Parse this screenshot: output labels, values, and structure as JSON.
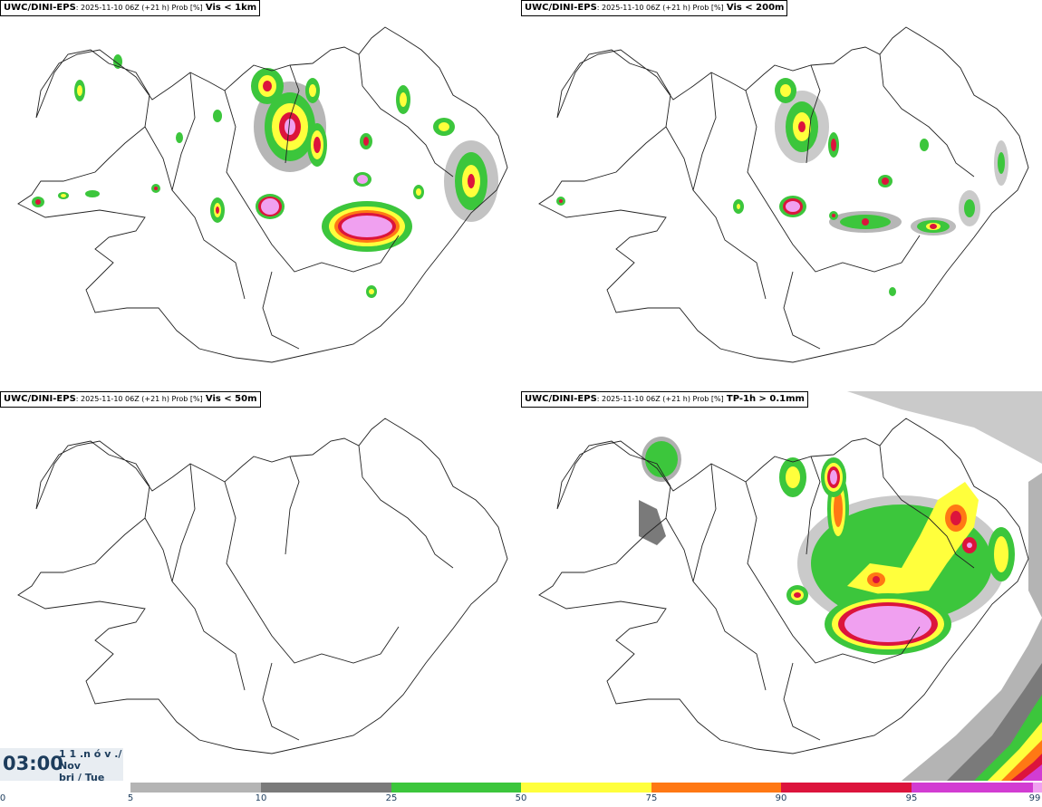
{
  "panels": [
    {
      "source": "UWC/DINI-EPS",
      "meta": ": 2025-11-10 06Z (+21 h) Prob [%]",
      "variable": "Vis < 1km"
    },
    {
      "source": "UWC/DINI-EPS",
      "meta": ": 2025-11-10 06Z (+21 h) Prob [%]",
      "variable": "Vis < 200m"
    },
    {
      "source": "UWC/DINI-EPS",
      "meta": ": 2025-11-10 06Z (+21 h) Prob [%]",
      "variable": "Vis < 50m"
    },
    {
      "source": "UWC/DINI-EPS",
      "meta": ": 2025-11-10 06Z (+21 h) Prob [%]",
      "variable": "TP-1h > 0.1mm"
    }
  ],
  "valid_time": {
    "time": "03:00",
    "date_line1": "1 1 .n ó v ./",
    "date_line2": "Nov",
    "date_line3": "þri / Tue"
  },
  "colorbar": {
    "ticks": [
      "0",
      "5",
      "10",
      "25",
      "50",
      "75",
      "90",
      "95",
      "99"
    ],
    "colors": [
      "#b4b4b4",
      "#7a7a7a",
      "#3cc63c",
      "#ffff3c",
      "#ff7814",
      "#dc143c",
      "#d23cd2",
      "#f0a0f0"
    ]
  }
}
